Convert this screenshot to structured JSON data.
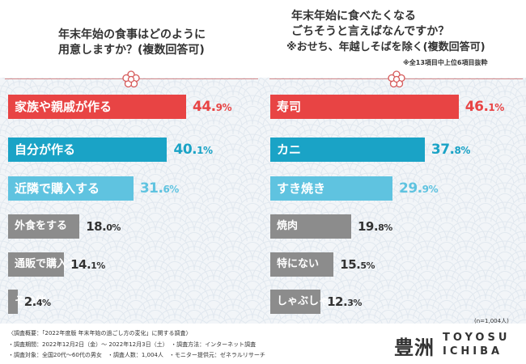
{
  "left_chart": {
    "question": [
      "年末年始の食事はどのように",
      "用意しますか？(複数回答可)"
    ]
  },
  "right_chart": {
    "question": [
      "年末年始に食べたくなる",
      "ごちそうと言えばなんですか？",
      "※おせち、年越しそばを除く(複数回答可)"
    ],
    "note": "※全13項目中上位6項目抜粋",
    "sample": "(n=1,004人)"
  },
  "footer": {
    "lines": [
      "〈調査概要：「2022年度版 年末年始の過ごし方の変化」に関する調査〉",
      "・調査期間：2022年12月2日（金）〜 2022年12月3日（土）　・調査方法：インターネット調査",
      "・調査対象：全国20代〜60代の男女　・調査人数：1,004人　・モニター提供元：ゼネラルリサーチ"
    ]
  },
  "brand": {
    "kanji": "豊洲",
    "line1": "TOYOSU",
    "line2": "ICHIBA"
  },
  "colors": {
    "red": "#e84444",
    "blue": "#1aa3c6",
    "light_blue": "#5fc3e0",
    "gray": "#8c8c8c",
    "text": "#333333",
    "accent_line": "#d68a8a"
  },
  "chart_data": [
    {
      "type": "bar",
      "orientation": "horizontal",
      "title": "年末年始の食事はどのように用意しますか？(複数回答可)",
      "unit": "%",
      "categories": [
        "家族や親戚が作る",
        "自分が作る",
        "近隣で購入する",
        "外食をする",
        "通販で購入する",
        "その他"
      ],
      "values": [
        44.9,
        40.1,
        31.6,
        18.0,
        14.1,
        2.4
      ],
      "labels": [
        "44.9%",
        "40.1%",
        "31.6%",
        "18.0%",
        "14.1%",
        "2.4%"
      ],
      "bar_colors": [
        "#e84444",
        "#1aa3c6",
        "#5fc3e0",
        "#8c8c8c",
        "#8c8c8c",
        "#8c8c8c"
      ]
    },
    {
      "type": "bar",
      "orientation": "horizontal",
      "title": "年末年始に食べたくなるごちそうと言えばなんですか？",
      "unit": "%",
      "categories": [
        "寿司",
        "カニ",
        "すき焼き",
        "焼肉",
        "特にない",
        "しゃぶしゃぶ"
      ],
      "values": [
        46.1,
        37.8,
        29.9,
        19.8,
        15.5,
        12.3
      ],
      "labels": [
        "46.1%",
        "37.8%",
        "29.9%",
        "19.8%",
        "15.5%",
        "12.3%"
      ],
      "bar_colors": [
        "#e84444",
        "#1aa3c6",
        "#5fc3e0",
        "#8c8c8c",
        "#8c8c8c",
        "#8c8c8c"
      ]
    }
  ]
}
